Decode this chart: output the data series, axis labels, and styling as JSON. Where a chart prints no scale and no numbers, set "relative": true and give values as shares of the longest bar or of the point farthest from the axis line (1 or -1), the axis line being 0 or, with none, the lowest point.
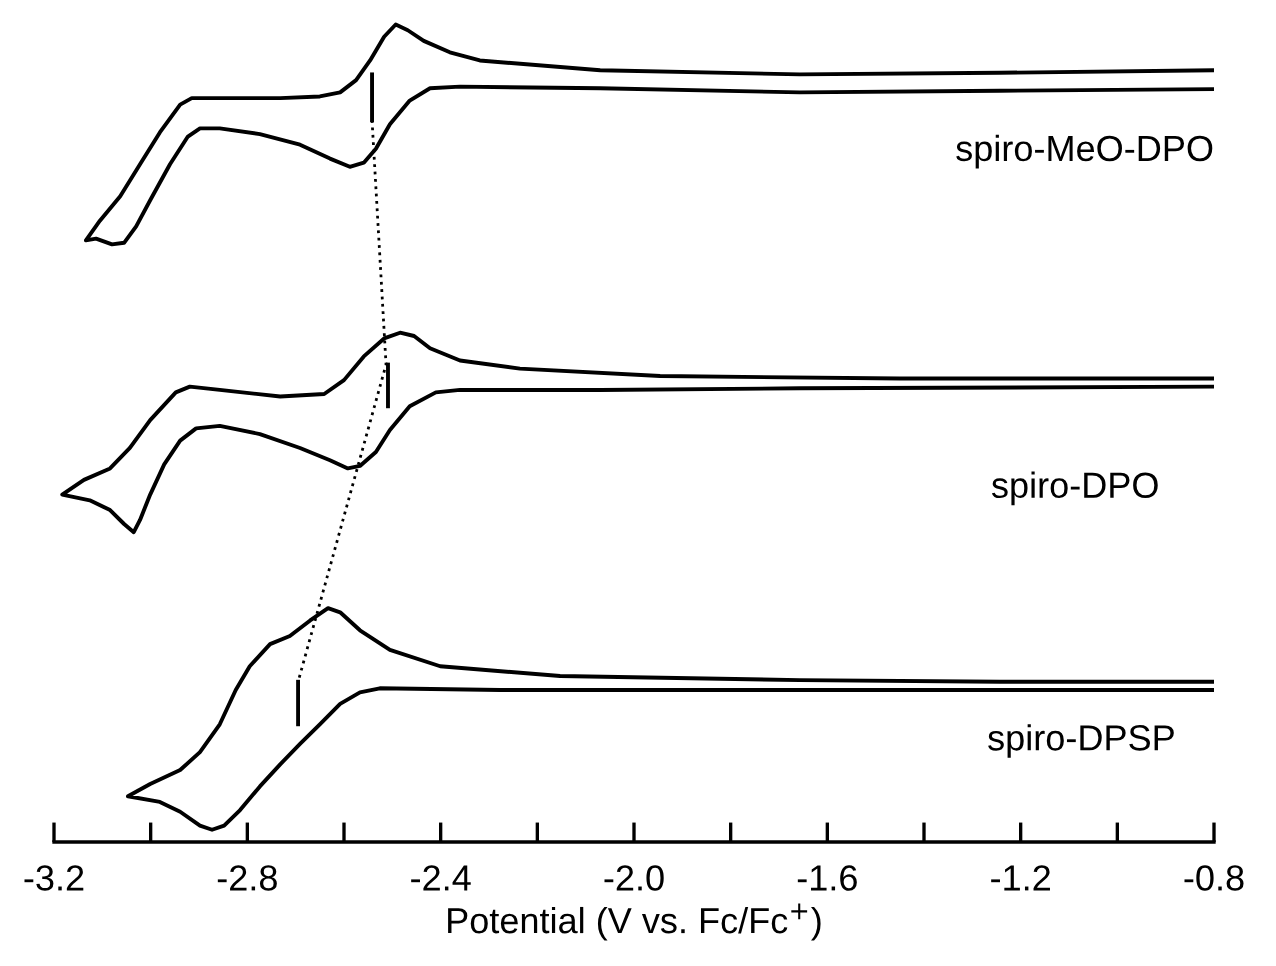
{
  "chart_data": {
    "type": "line",
    "relative": true,
    "xlabel": "Potential (V vs. Fc/Fc$^{+}$)",
    "xlim": [
      -3.2,
      -0.8
    ],
    "xticks": [
      {
        "value": -3.2,
        "label": "-3.2"
      },
      {
        "value": -3.0,
        "label": null
      },
      {
        "value": -2.8,
        "label": "-2.8"
      },
      {
        "value": -2.6,
        "label": null
      },
      {
        "value": -2.4,
        "label": "-2.4"
      },
      {
        "value": -2.2,
        "label": null
      },
      {
        "value": -2.0,
        "label": "-2.0"
      },
      {
        "value": -1.8,
        "label": null
      },
      {
        "value": -1.6,
        "label": "-1.6"
      },
      {
        "value": -1.4,
        "label": null
      },
      {
        "value": -1.2,
        "label": "-1.2"
      },
      {
        "value": -1.0,
        "label": null
      },
      {
        "value": -0.8,
        "label": "-0.8"
      }
    ],
    "tick_labels": "x",
    "grid": false,
    "series": [
      {
        "color": "#000000",
        "line_style": "solid",
        "x": [
          -0.8,
          -1.243,
          -1.657,
          -2.07,
          -2.36,
          -2.422,
          -2.464,
          -2.505,
          -2.534,
          -2.559,
          -2.588,
          -2.629,
          -2.691,
          -2.774,
          -2.857,
          -2.898,
          -2.923,
          -2.96,
          -3.001,
          -3.03,
          -3.055,
          -3.08,
          -3.113,
          -3.134,
          -3.105,
          -3.063,
          -3.022,
          -2.981,
          -2.939,
          -2.915,
          -2.857,
          -2.732,
          -2.65,
          -2.608,
          -2.575,
          -2.546,
          -2.517,
          -2.493,
          -2.468,
          -2.435,
          -2.381,
          -2.319,
          -2.07,
          -1.657,
          -1.243,
          -0.8
        ],
        "values": [
          0.921,
          0.919,
          0.917,
          0.922,
          0.924,
          0.922,
          0.907,
          0.878,
          0.848,
          0.831,
          0.826,
          0.836,
          0.853,
          0.866,
          0.873,
          0.873,
          0.863,
          0.829,
          0.785,
          0.753,
          0.733,
          0.731,
          0.738,
          0.736,
          0.76,
          0.79,
          0.829,
          0.868,
          0.902,
          0.91,
          0.91,
          0.91,
          0.912,
          0.917,
          0.932,
          0.956,
          0.985,
          1.0,
          0.993,
          0.98,
          0.966,
          0.956,
          0.944,
          0.939,
          0.941,
          0.944
        ]
      },
      {
        "color": "#000000",
        "line_style": "solid",
        "x": [
          -0.8,
          -1.657,
          -2.07,
          -2.36,
          -2.41,
          -2.464,
          -2.505,
          -2.534,
          -2.567,
          -2.592,
          -2.629,
          -2.691,
          -2.774,
          -2.857,
          -2.906,
          -2.939,
          -2.972,
          -3.001,
          -3.022,
          -3.035,
          -3.055,
          -3.084,
          -3.126,
          -3.183,
          -3.138,
          -3.084,
          -3.043,
          -3.001,
          -2.948,
          -2.919,
          -2.857,
          -2.732,
          -2.641,
          -2.6,
          -2.559,
          -2.517,
          -2.484,
          -2.455,
          -2.422,
          -2.36,
          -2.236,
          -1.946,
          -1.45,
          -0.8
        ],
        "values": [
          0.557,
          0.555,
          0.553,
          0.553,
          0.55,
          0.533,
          0.504,
          0.477,
          0.46,
          0.457,
          0.467,
          0.482,
          0.499,
          0.509,
          0.506,
          0.491,
          0.462,
          0.425,
          0.394,
          0.379,
          0.389,
          0.406,
          0.418,
          0.425,
          0.443,
          0.457,
          0.482,
          0.516,
          0.55,
          0.557,
          0.553,
          0.545,
          0.548,
          0.565,
          0.594,
          0.616,
          0.623,
          0.619,
          0.604,
          0.589,
          0.579,
          0.57,
          0.567,
          0.567
        ]
      },
      {
        "color": "#000000",
        "line_style": "solid",
        "x": [
          -0.8,
          -1.657,
          -2.277,
          -2.526,
          -2.567,
          -2.608,
          -2.65,
          -2.691,
          -2.732,
          -2.774,
          -2.815,
          -2.848,
          -2.873,
          -2.898,
          -2.939,
          -2.981,
          -3.047,
          -3.001,
          -2.939,
          -2.898,
          -2.857,
          -2.824,
          -2.795,
          -2.753,
          -2.712,
          -2.67,
          -2.633,
          -2.608,
          -2.567,
          -2.505,
          -2.401,
          -2.153,
          -1.657,
          -1.243,
          -0.8
        ],
        "values": [
          0.186,
          0.186,
          0.186,
          0.188,
          0.183,
          0.169,
          0.144,
          0.12,
          0.095,
          0.068,
          0.039,
          0.02,
          0.015,
          0.02,
          0.037,
          0.049,
          0.056,
          0.071,
          0.088,
          0.11,
          0.144,
          0.186,
          0.215,
          0.242,
          0.252,
          0.271,
          0.286,
          0.281,
          0.259,
          0.235,
          0.215,
          0.203,
          0.198,
          0.196,
          0.196
        ]
      },
      {
        "color": "#000000",
        "line_style": "solid",
        "x": [
          -2.542,
          -2.542
        ],
        "values": [
          0.939,
          0.883
        ]
      },
      {
        "color": "#000000",
        "line_style": "solid",
        "x": [
          -2.509,
          -2.509
        ],
        "values": [
          0.584,
          0.533
        ]
      },
      {
        "color": "#000000",
        "line_style": "solid",
        "x": [
          -2.695,
          -2.695
        ],
        "values": [
          0.196,
          0.144
        ]
      },
      {
        "color": "#000000",
        "line_style": "dotted",
        "x": [
          -2.542,
          -2.513,
          -2.695
        ],
        "values": [
          0.883,
          0.584,
          0.196
        ]
      }
    ],
    "annotations": [
      "spiro-MeO-DPO",
      "spiro-DPO",
      "spiro-DPSP"
    ]
  }
}
